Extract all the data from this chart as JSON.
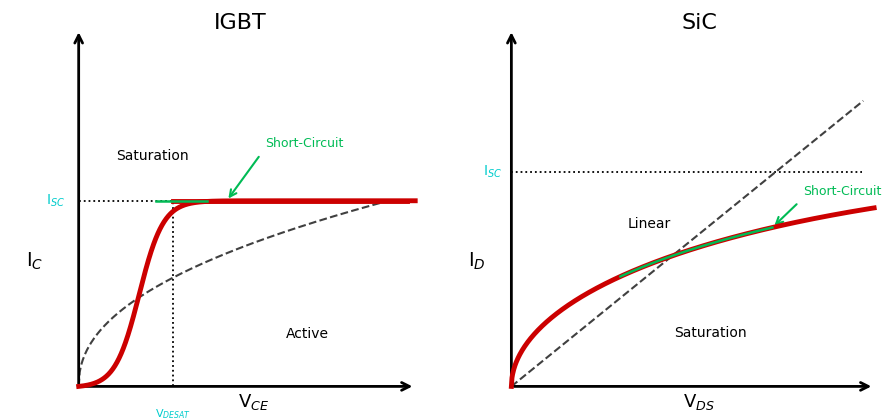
{
  "fig_width": 8.96,
  "fig_height": 4.2,
  "background_color": "#ffffff",
  "igbt": {
    "title": "IGBT",
    "xlabel": "V$_{CE}$",
    "ylabel": "I$_C$",
    "isc_label": "I$_{SC}$",
    "vdesat_label": "V$_{DESAT}$",
    "saturation_label": "Saturation",
    "active_label": "Active",
    "sc_label": "Short-Circuit",
    "curve_color": "#cc0000",
    "curve_linewidth": 3.5,
    "dashed_color": "#404040",
    "green_color": "#00bb55",
    "cyan_color": "#00cccc"
  },
  "sic": {
    "title": "SiC",
    "xlabel": "V$_{DS}$",
    "ylabel": "I$_D$",
    "isc_label": "I$_{SC}$",
    "linear_label": "Linear",
    "saturation_label": "Saturation",
    "sc_label": "Short-Circuit",
    "curve_color": "#cc0000",
    "curve_linewidth": 3.5,
    "dashed_color": "#404040",
    "green_color": "#00bb55",
    "cyan_color": "#00cccc"
  }
}
